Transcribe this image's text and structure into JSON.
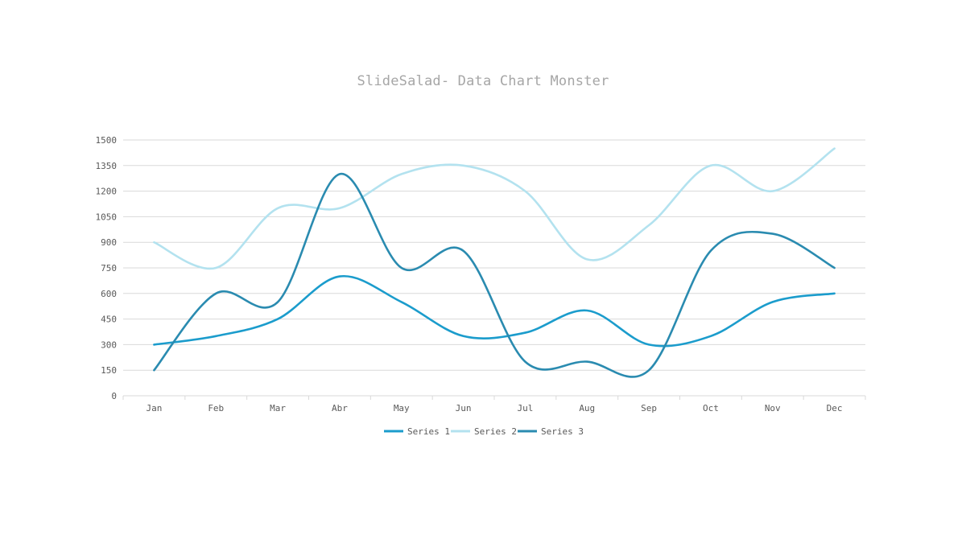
{
  "chart_data": {
    "type": "line",
    "title": "SlideSalad- Data Chart Monster",
    "xlabel": "",
    "ylabel": "",
    "categories": [
      "Jan",
      "Feb",
      "Mar",
      "Abr",
      "May",
      "Jun",
      "Jul",
      "Aug",
      "Sep",
      "Oct",
      "Nov",
      "Dec"
    ],
    "ylim": [
      0,
      1500
    ],
    "yticks": [
      0,
      150,
      300,
      450,
      600,
      750,
      900,
      1050,
      1200,
      1350,
      1500
    ],
    "grid": true,
    "smooth": true,
    "legend_position": "bottom",
    "series": [
      {
        "name": "Series 1",
        "color": "#1b9ccc",
        "values": [
          300,
          350,
          450,
          700,
          550,
          350,
          370,
          500,
          300,
          350,
          550,
          600
        ]
      },
      {
        "name": "Series 2",
        "color": "#b3e2ef",
        "values": [
          900,
          750,
          1100,
          1100,
          1300,
          1350,
          1200,
          800,
          1000,
          1350,
          1200,
          1450
        ]
      },
      {
        "name": "Series 3",
        "color": "#2a8bb0",
        "values": [
          150,
          600,
          550,
          1300,
          750,
          850,
          200,
          200,
          150,
          850,
          950,
          750
        ]
      }
    ]
  }
}
